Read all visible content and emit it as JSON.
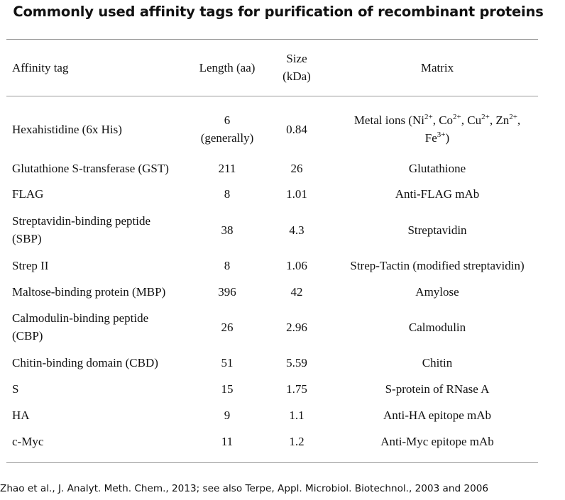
{
  "title": "Commonly used affinity tags for purification of recombinant proteins",
  "columns": {
    "tag": "Affinity tag",
    "length": "Length (aa)",
    "size_line1": "Size",
    "size_line2": "(kDa)",
    "matrix": "Matrix"
  },
  "rows": [
    {
      "tag": "Hexahistidine (6x His)",
      "length": "6",
      "length_note": "(generally)",
      "size": "0.84",
      "matrix_parts": [
        "Metal ions (Ni",
        "2+",
        ", Co",
        "2+",
        ", Cu",
        "2+",
        ", Zn",
        "2+",
        ",",
        "Fe",
        "3+",
        ")"
      ]
    },
    {
      "tag": "Glutathione S-transferase (GST)",
      "length": "211",
      "size": "26",
      "matrix": "Glutathione"
    },
    {
      "tag": "FLAG",
      "length": "8",
      "size": "1.01",
      "matrix": "Anti-FLAG mAb"
    },
    {
      "tag_line1": "Streptavidin-binding peptide",
      "tag_line2": "(SBP)",
      "length": "38",
      "size": "4.3",
      "matrix": "Streptavidin"
    },
    {
      "tag": "Strep II",
      "length": "8",
      "size": "1.06",
      "matrix": "Strep-Tactin (modified streptavidin)"
    },
    {
      "tag": "Maltose-binding protein (MBP)",
      "length": "396",
      "size": "42",
      "matrix": "Amylose"
    },
    {
      "tag_line1": "Calmodulin-binding peptide",
      "tag_line2": "(CBP)",
      "length": "26",
      "size": "2.96",
      "matrix": "Calmodulin"
    },
    {
      "tag": "Chitin-binding domain (CBD)",
      "length": "51",
      "size": "5.59",
      "matrix": "Chitin"
    },
    {
      "tag": "S",
      "length": "15",
      "size": "1.75",
      "matrix": "S-protein of RNase A"
    },
    {
      "tag": "HA",
      "length": "9",
      "size": "1.1",
      "matrix": "Anti-HA epitope mAb"
    },
    {
      "tag": "c-Myc",
      "length": "11",
      "size": "1.2",
      "matrix": "Anti-Myc epitope mAb"
    }
  ],
  "footer": "Zhao et al., J. Analyt. Meth. Chem., 2013; see also Terpe, Appl. Microbiol. Biotechnol., 2003 and 2006"
}
